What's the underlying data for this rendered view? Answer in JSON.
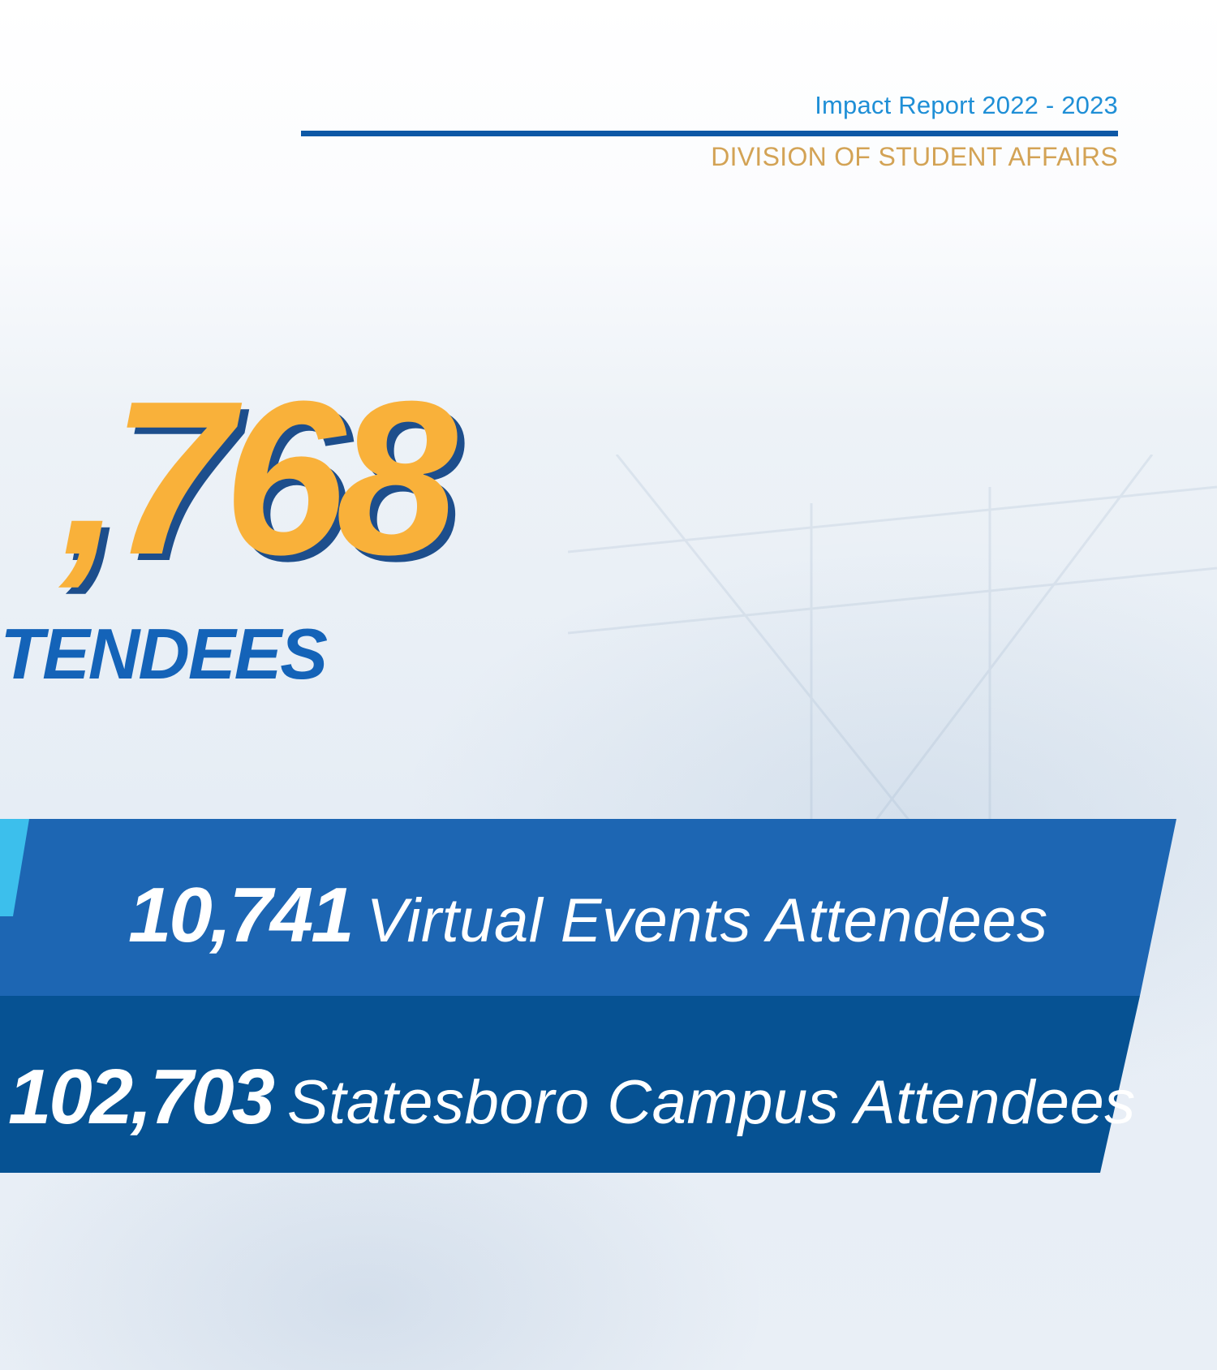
{
  "header": {
    "report_title": "Impact Report 2022 - 2023",
    "division": "DIVISION OF STUDENT AFFAIRS"
  },
  "headline": {
    "number": ",768",
    "label": "TENDEES"
  },
  "breakdown": [
    {
      "value": "10,741",
      "label": "Virtual Events Attendees"
    },
    {
      "value": "102,703",
      "label": "Statesboro Campus Attendees"
    }
  ],
  "colors": {
    "accent_gold": "#f9b13a",
    "primary_blue": "#1463b8",
    "band_light": "#1d66b3",
    "band_dark": "#065293",
    "band_tab": "#3cbfec",
    "division_gold": "#d3a355",
    "report_blue": "#1f8fd6"
  }
}
